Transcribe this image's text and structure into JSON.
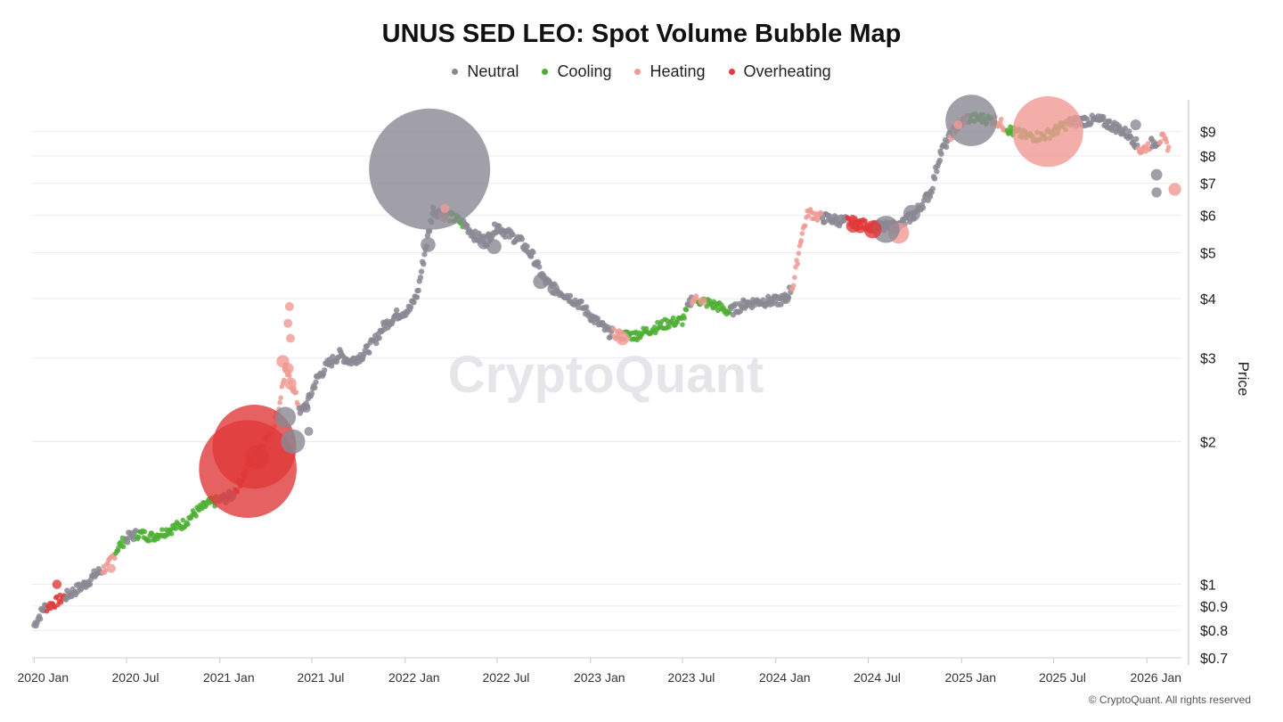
{
  "chart_data": {
    "type": "scatter",
    "title": "UNUS SED LEO: Spot Volume Bubble Map",
    "ylabel": "Price",
    "y_scale": "log",
    "ylim": [
      0.7,
      10.5
    ],
    "xlim": [
      "2019-12-28",
      "2026-03-10"
    ],
    "x_ticks": [
      {
        "date": "2020-01-01",
        "label": "2020 Jan"
      },
      {
        "date": "2020-07-01",
        "label": "2020 Jul"
      },
      {
        "date": "2021-01-01",
        "label": "2021 Jan"
      },
      {
        "date": "2021-07-01",
        "label": "2021 Jul"
      },
      {
        "date": "2022-01-01",
        "label": "2022 Jan"
      },
      {
        "date": "2022-07-01",
        "label": "2022 Jul"
      },
      {
        "date": "2023-01-01",
        "label": "2023 Jan"
      },
      {
        "date": "2023-07-01",
        "label": "2023 Jul"
      },
      {
        "date": "2024-01-01",
        "label": "2024 Jan"
      },
      {
        "date": "2024-07-01",
        "label": "2024 Jul"
      },
      {
        "date": "2025-01-01",
        "label": "2025 Jan"
      },
      {
        "date": "2025-07-01",
        "label": "2025 Jul"
      },
      {
        "date": "2026-01-01",
        "label": "2026 Jan"
      }
    ],
    "y_ticks": [
      {
        "value": 9,
        "label": "$9"
      },
      {
        "value": 8,
        "label": "$8"
      },
      {
        "value": 7,
        "label": "$7"
      },
      {
        "value": 6,
        "label": "$6"
      },
      {
        "value": 5,
        "label": "$5"
      },
      {
        "value": 4,
        "label": "$4"
      },
      {
        "value": 3,
        "label": "$3"
      },
      {
        "value": 2,
        "label": "$2"
      },
      {
        "value": 1,
        "label": "$1"
      },
      {
        "value": 0.9,
        "label": "$0.9"
      },
      {
        "value": 0.8,
        "label": "$0.8"
      },
      {
        "value": 0.7,
        "label": "$0.7"
      }
    ],
    "grid": true,
    "legend_position": "top-center",
    "series": [
      {
        "name": "Neutral",
        "color": "#8a8894"
      },
      {
        "name": "Cooling",
        "color": "#4caf32"
      },
      {
        "name": "Heating",
        "color": "#f09a94"
      },
      {
        "name": "Overheating",
        "color": "#e03a3a"
      }
    ],
    "price_path": [
      [
        "2020-01-01",
        0.82
      ],
      [
        "2020-01-20",
        0.89
      ],
      [
        "2020-02-15",
        0.92
      ],
      [
        "2020-03-15",
        0.96
      ],
      [
        "2020-04-10",
        1.0
      ],
      [
        "2020-05-01",
        1.05
      ],
      [
        "2020-05-25",
        1.09
      ],
      [
        "2020-06-15",
        1.2
      ],
      [
        "2020-07-01",
        1.25
      ],
      [
        "2020-07-25",
        1.28
      ],
      [
        "2020-08-20",
        1.26
      ],
      [
        "2020-09-20",
        1.3
      ],
      [
        "2020-10-20",
        1.34
      ],
      [
        "2020-11-15",
        1.42
      ],
      [
        "2020-12-10",
        1.48
      ],
      [
        "2021-01-05",
        1.51
      ],
      [
        "2021-01-25",
        1.54
      ],
      [
        "2021-02-20",
        1.72
      ],
      [
        "2021-03-05",
        1.85
      ],
      [
        "2021-03-25",
        1.97
      ],
      [
        "2021-04-10",
        2.08
      ],
      [
        "2021-04-25",
        2.3
      ],
      [
        "2021-05-10",
        2.85
      ],
      [
        "2021-05-25",
        2.6
      ],
      [
        "2021-06-10",
        2.3
      ],
      [
        "2021-06-25",
        2.45
      ],
      [
        "2021-07-10",
        2.7
      ],
      [
        "2021-08-01",
        2.9
      ],
      [
        "2021-08-25",
        3.05
      ],
      [
        "2021-09-15",
        2.95
      ],
      [
        "2021-10-10",
        3.05
      ],
      [
        "2021-11-01",
        3.25
      ],
      [
        "2021-11-20",
        3.5
      ],
      [
        "2021-12-15",
        3.7
      ],
      [
        "2022-01-10",
        3.8
      ],
      [
        "2022-01-25",
        4.1
      ],
      [
        "2022-02-10",
        5.1
      ],
      [
        "2022-02-25",
        6.15
      ],
      [
        "2022-03-20",
        6.0
      ],
      [
        "2022-04-10",
        5.9
      ],
      [
        "2022-05-01",
        5.7
      ],
      [
        "2022-05-20",
        5.4
      ],
      [
        "2022-06-10",
        5.3
      ],
      [
        "2022-07-01",
        5.7
      ],
      [
        "2022-07-20",
        5.5
      ],
      [
        "2022-08-15",
        5.3
      ],
      [
        "2022-09-10",
        4.9
      ],
      [
        "2022-10-01",
        4.4
      ],
      [
        "2022-10-20",
        4.2
      ],
      [
        "2022-11-10",
        4.1
      ],
      [
        "2022-12-10",
        3.9
      ],
      [
        "2023-01-05",
        3.65
      ],
      [
        "2023-02-05",
        3.4
      ],
      [
        "2023-03-01",
        3.35
      ],
      [
        "2023-04-01",
        3.35
      ],
      [
        "2023-05-01",
        3.45
      ],
      [
        "2023-06-01",
        3.55
      ],
      [
        "2023-07-01",
        3.6
      ],
      [
        "2023-07-20",
        4.0
      ],
      [
        "2023-08-10",
        3.95
      ],
      [
        "2023-09-10",
        3.85
      ],
      [
        "2023-10-01",
        3.75
      ],
      [
        "2023-11-01",
        3.9
      ],
      [
        "2023-12-01",
        3.95
      ],
      [
        "2024-01-01",
        3.95
      ],
      [
        "2024-01-20",
        4.0
      ],
      [
        "2024-02-05",
        4.3
      ],
      [
        "2024-02-20",
        5.4
      ],
      [
        "2024-03-05",
        6.1
      ],
      [
        "2024-03-25",
        5.95
      ],
      [
        "2024-05-01",
        5.85
      ],
      [
        "2024-06-01",
        5.8
      ],
      [
        "2024-07-01",
        5.7
      ],
      [
        "2024-08-01",
        5.65
      ],
      [
        "2024-09-01",
        5.7
      ],
      [
        "2024-10-01",
        6.05
      ],
      [
        "2024-11-01",
        6.7
      ],
      [
        "2024-11-20",
        8.1
      ],
      [
        "2024-12-15",
        9.0
      ],
      [
        "2025-01-10",
        9.6
      ],
      [
        "2025-02-10",
        9.6
      ],
      [
        "2025-03-10",
        9.5
      ],
      [
        "2025-04-10",
        9.0
      ],
      [
        "2025-05-10",
        8.8
      ],
      [
        "2025-06-10",
        8.8
      ],
      [
        "2025-07-01",
        9.0
      ],
      [
        "2025-08-01",
        9.4
      ],
      [
        "2025-09-01",
        9.5
      ],
      [
        "2025-10-01",
        9.5
      ],
      [
        "2025-11-01",
        9.2
      ],
      [
        "2025-12-01",
        8.8
      ],
      [
        "2025-12-20",
        8.2
      ],
      [
        "2026-01-10",
        8.5
      ],
      [
        "2026-02-01",
        8.7
      ],
      [
        "2026-02-15",
        8.3
      ]
    ],
    "bubbles": [
      {
        "date": "2022-02-18",
        "price": 7.5,
        "state": "Neutral",
        "volume": 100
      },
      {
        "date": "2021-02-25",
        "price": 1.75,
        "state": "Overheating",
        "volume": 65
      },
      {
        "date": "2021-03-10",
        "price": 1.95,
        "state": "Overheating",
        "volume": 48
      },
      {
        "date": "2025-06-20",
        "price": 9.0,
        "state": "Heating",
        "volume": 34
      },
      {
        "date": "2025-01-20",
        "price": 9.5,
        "state": "Neutral",
        "volume": 18
      },
      {
        "date": "2021-03-15",
        "price": 1.85,
        "state": "Overheating",
        "volume": 4
      },
      {
        "date": "2021-05-25",
        "price": 2.0,
        "state": "Neutral",
        "volume": 4
      },
      {
        "date": "2021-05-10",
        "price": 2.25,
        "state": "Neutral",
        "volume": 3
      },
      {
        "date": "2024-08-30",
        "price": 5.5,
        "state": "Heating",
        "volume": 3
      },
      {
        "date": "2024-08-05",
        "price": 5.6,
        "state": "Neutral",
        "volume": 5
      },
      {
        "date": "2024-09-25",
        "price": 6.05,
        "state": "Neutral",
        "volume": 2
      },
      {
        "date": "2024-07-10",
        "price": 5.6,
        "state": "Overheating",
        "volume": 2.2
      },
      {
        "date": "2024-06-15",
        "price": 5.7,
        "state": "Overheating",
        "volume": 1.5
      },
      {
        "date": "2024-06-01",
        "price": 5.7,
        "state": "Overheating",
        "volume": 1.3
      },
      {
        "date": "2022-02-15",
        "price": 5.2,
        "state": "Neutral",
        "volume": 1.5
      },
      {
        "date": "2022-06-25",
        "price": 5.15,
        "state": "Neutral",
        "volume": 1.5
      },
      {
        "date": "2022-06-05",
        "price": 5.25,
        "state": "Neutral",
        "volume": 1.2
      },
      {
        "date": "2022-09-25",
        "price": 4.35,
        "state": "Neutral",
        "volume": 1.6
      },
      {
        "date": "2022-10-20",
        "price": 4.2,
        "state": "Neutral",
        "volume": 1.0
      },
      {
        "date": "2023-03-05",
        "price": 3.3,
        "state": "Heating",
        "volume": 1.3
      },
      {
        "date": "2024-01-20",
        "price": 4.0,
        "state": "Neutral",
        "volume": 0.8
      },
      {
        "date": "2026-01-20",
        "price": 6.7,
        "state": "Neutral",
        "volume": 0.7
      },
      {
        "date": "2026-01-20",
        "price": 7.3,
        "state": "Neutral",
        "volume": 0.9
      },
      {
        "date": "2026-02-25",
        "price": 6.8,
        "state": "Heating",
        "volume": 1.1
      },
      {
        "date": "2025-12-10",
        "price": 9.3,
        "state": "Neutral",
        "volume": 0.8
      },
      {
        "date": "2021-05-05",
        "price": 2.95,
        "state": "Heating",
        "volume": 1.1
      },
      {
        "date": "2021-05-15",
        "price": 2.85,
        "state": "Heating",
        "volume": 0.9
      },
      {
        "date": "2021-05-20",
        "price": 2.65,
        "state": "Heating",
        "volume": 1.0
      },
      {
        "date": "2021-05-15",
        "price": 3.55,
        "state": "Heating",
        "volume": 0.5
      },
      {
        "date": "2021-05-18",
        "price": 3.85,
        "state": "Heating",
        "volume": 0.4
      },
      {
        "date": "2021-05-20",
        "price": 3.3,
        "state": "Heating",
        "volume": 0.35
      },
      {
        "date": "2021-06-25",
        "price": 2.1,
        "state": "Neutral",
        "volume": 0.5
      },
      {
        "date": "2021-06-20",
        "price": 2.35,
        "state": "Neutral",
        "volume": 0.5
      },
      {
        "date": "2022-03-20",
        "price": 6.2,
        "state": "Heating",
        "volume": 0.5
      },
      {
        "date": "2024-12-25",
        "price": 9.3,
        "state": "Heating",
        "volume": 0.4
      },
      {
        "date": "2020-02-15",
        "price": 1.0,
        "state": "Overheating",
        "volume": 0.6
      },
      {
        "date": "2020-06-01",
        "price": 1.08,
        "state": "Heating",
        "volume": 0.35
      },
      {
        "date": "2023-12-20",
        "price": 3.95,
        "state": "Neutral",
        "volume": 0.4
      },
      {
        "date": "2023-08-10",
        "price": 3.95,
        "state": "Heating",
        "volume": 0.3
      }
    ]
  },
  "credit": "© CryptoQuant. All rights reserved",
  "watermark": "CryptoQuant"
}
